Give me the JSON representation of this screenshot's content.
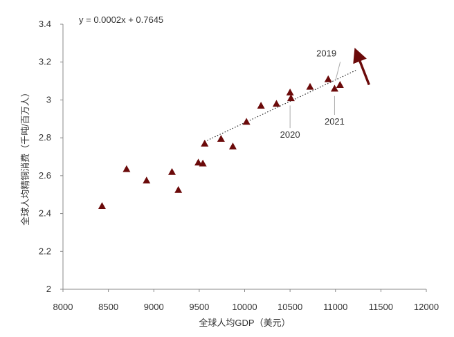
{
  "chart_data": {
    "type": "scatter",
    "xlabel": "全球人均GDP（美元）",
    "ylabel": "全球人均精铜消费（千吨/百万人）",
    "xlim": [
      8000,
      12000
    ],
    "ylim": [
      2.0,
      3.4
    ],
    "xticks": [
      8000,
      8500,
      9000,
      9500,
      10000,
      10500,
      11000,
      11500,
      12000
    ],
    "yticks": [
      2.0,
      2.2,
      2.4,
      2.6,
      2.8,
      3.0,
      3.2,
      3.4
    ],
    "xtick_labels": [
      "8000",
      "8500",
      "9000",
      "9500",
      "10000",
      "10500",
      "11000",
      "11500",
      "12000"
    ],
    "ytick_labels": [
      "2",
      "2.2",
      "2.4",
      "2.6",
      "2.8",
      "3",
      "3.2",
      "3.4"
    ],
    "grid": false,
    "points": [
      {
        "x": 8430,
        "y": 2.44
      },
      {
        "x": 8700,
        "y": 2.635
      },
      {
        "x": 8920,
        "y": 2.575
      },
      {
        "x": 9200,
        "y": 2.62
      },
      {
        "x": 9270,
        "y": 2.525
      },
      {
        "x": 9490,
        "y": 2.67
      },
      {
        "x": 9540,
        "y": 2.665
      },
      {
        "x": 9560,
        "y": 2.77
      },
      {
        "x": 9740,
        "y": 2.795
      },
      {
        "x": 9870,
        "y": 2.755
      },
      {
        "x": 10020,
        "y": 2.885
      },
      {
        "x": 10180,
        "y": 2.97
      },
      {
        "x": 10350,
        "y": 2.98
      },
      {
        "x": 10500,
        "y": 3.04
      },
      {
        "x": 10510,
        "y": 3.01
      },
      {
        "x": 10720,
        "y": 3.07
      },
      {
        "x": 10920,
        "y": 3.11
      },
      {
        "x": 10990,
        "y": 3.06
      },
      {
        "x": 11050,
        "y": 3.08
      }
    ],
    "trendline": {
      "equation": "y = 0.0002x + 0.7645",
      "x_start": 9560,
      "x_end": 11240,
      "y_start": 2.78,
      "y_end": 3.16
    },
    "trend_arrow": {
      "from": {
        "x": 11370,
        "y": 3.08
      },
      "to": {
        "x": 11240,
        "y": 3.24
      }
    },
    "annotations": [
      {
        "text": "2019",
        "point": {
          "x": 11000,
          "y": 3.08
        },
        "label_pos": {
          "x": 10900,
          "y": 3.23
        }
      },
      {
        "text": "2020",
        "point": {
          "x": 10500,
          "y": 3.0
        },
        "label_pos": {
          "x": 10500,
          "y": 2.8
        }
      },
      {
        "text": "2021",
        "point": {
          "x": 10990,
          "y": 3.05
        },
        "label_pos": {
          "x": 10990,
          "y": 2.87
        }
      }
    ],
    "colors": {
      "marker": "#6b0a0a",
      "trendline": "#222222",
      "arrow": "#6b0a0a",
      "axis": "#888888",
      "callout_line": "#aaaaaa"
    }
  }
}
